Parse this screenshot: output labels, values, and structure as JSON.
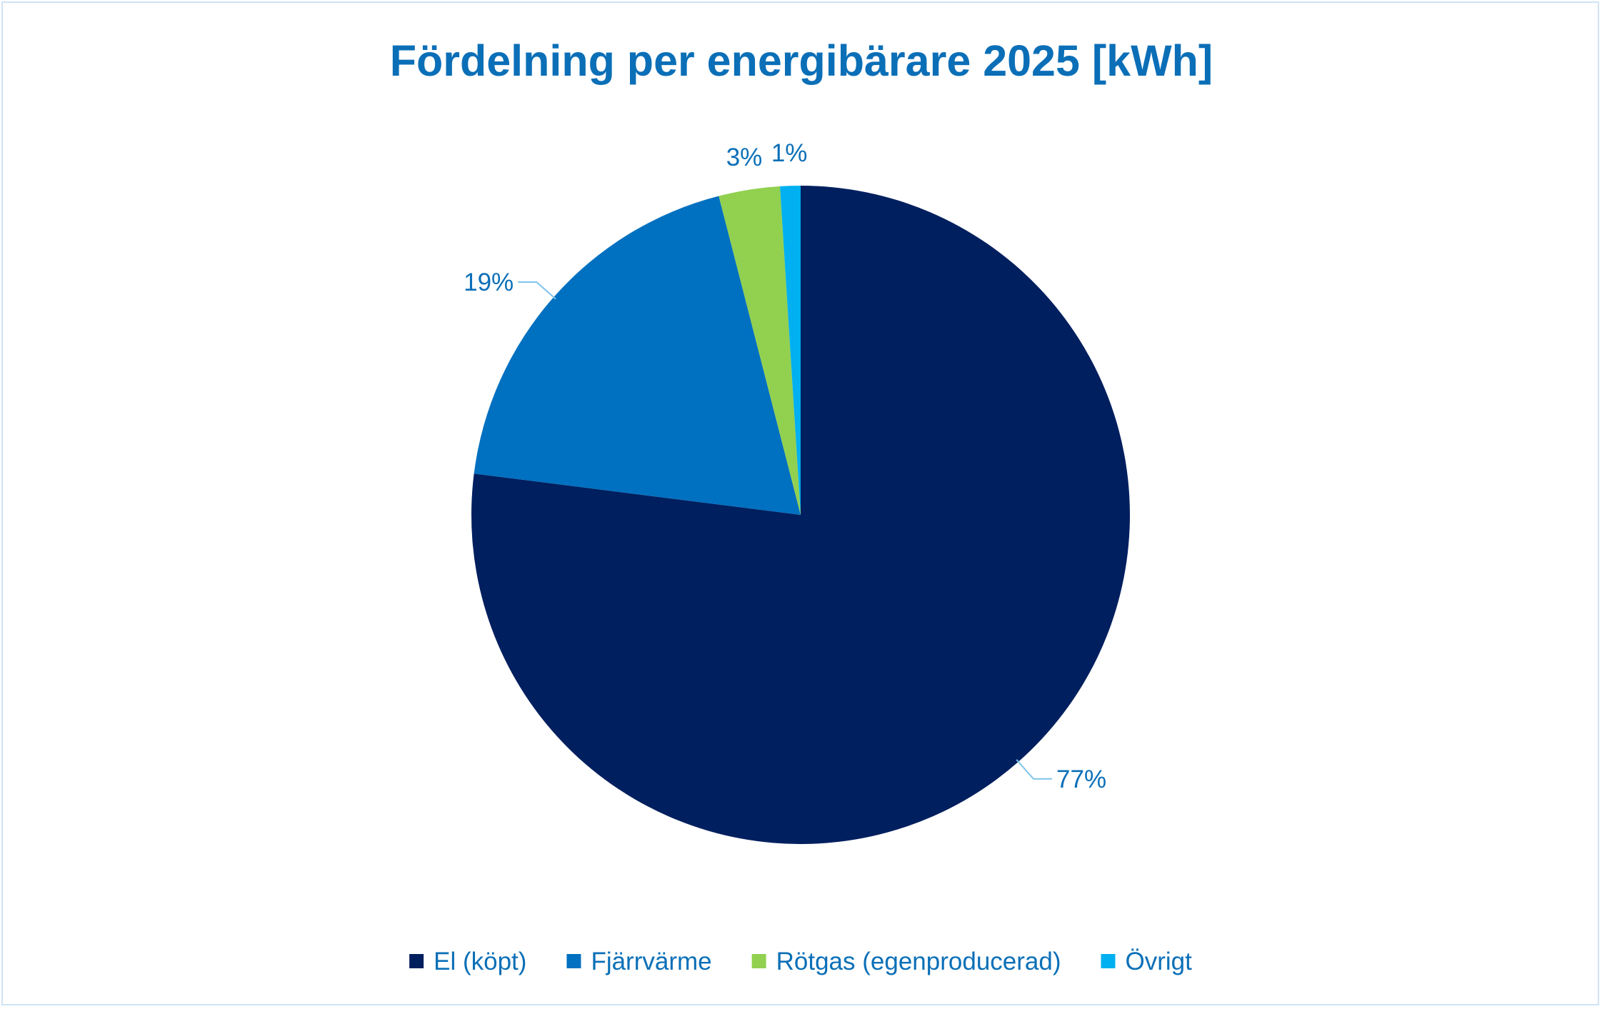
{
  "chart_data": {
    "type": "pie",
    "title": "Fördelning per energibärare 2025 [kWh]",
    "categories": [
      "El (köpt)",
      "Fjärrvärme",
      "Rötgas (egenproducerad)",
      "Övrigt"
    ],
    "values": [
      77,
      19,
      3,
      1
    ],
    "value_labels": [
      "77%",
      "19%",
      "3%",
      "1%"
    ],
    "unit": "%",
    "legend_position": "bottom",
    "colors": {
      "series": [
        "#001f5f",
        "#0070c0",
        "#92d050",
        "#00b0f0"
      ],
      "title": "#0b6fb7",
      "labels": "#0b6fb7",
      "leader": "#7fc4ea"
    }
  }
}
